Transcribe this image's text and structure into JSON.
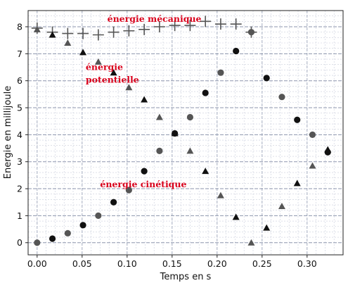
{
  "chart_data": {
    "type": "scatter",
    "title": "",
    "xlabel": "Temps en s",
    "ylabel": "Energie en millijoule",
    "xlim": [
      -0.01,
      0.34
    ],
    "ylim": [
      -0.45,
      8.6
    ],
    "x_ticks": [
      0.0,
      0.05,
      0.1,
      0.15,
      0.2,
      0.25,
      0.3
    ],
    "x_tick_labels": [
      "0.00",
      "0.05",
      "0.10",
      "0.15",
      "0.20",
      "0.25",
      "0.30"
    ],
    "y_ticks": [
      0,
      1,
      2,
      3,
      4,
      5,
      6,
      7,
      8
    ],
    "y_tick_labels": [
      "0",
      "1",
      "2",
      "3",
      "4",
      "5",
      "6",
      "7",
      "8"
    ],
    "grid": true,
    "series": [
      {
        "name": "énergie mécanique",
        "marker": "plus",
        "color": "#555555",
        "x": [
          0.0,
          0.017,
          0.034,
          0.051,
          0.068,
          0.085,
          0.102,
          0.119,
          0.136,
          0.153,
          0.17,
          0.187,
          0.204,
          0.221,
          0.238
        ],
        "y": [
          7.95,
          7.8,
          7.75,
          7.75,
          7.7,
          7.8,
          7.85,
          7.9,
          8.0,
          8.05,
          8.05,
          8.2,
          8.1,
          8.1,
          7.8
        ]
      },
      {
        "name": "énergie potentielle",
        "marker": "triangle",
        "colors_alternating": [
          "#555555",
          "#111111"
        ],
        "x": [
          0.0,
          0.017,
          0.034,
          0.051,
          0.068,
          0.085,
          0.102,
          0.119,
          0.136,
          0.153,
          0.17,
          0.187,
          0.204,
          0.221,
          0.238,
          0.255,
          0.272,
          0.289,
          0.306,
          0.323
        ],
        "y": [
          7.9,
          7.7,
          7.4,
          7.05,
          6.7,
          6.3,
          5.75,
          5.3,
          4.65,
          4.05,
          3.4,
          2.65,
          1.75,
          0.95,
          0.0,
          0.55,
          1.35,
          2.2,
          2.85,
          3.45
        ]
      },
      {
        "name": "énergie cinétique",
        "marker": "circle",
        "colors_alternating": [
          "#555555",
          "#111111"
        ],
        "x": [
          0.0,
          0.017,
          0.034,
          0.051,
          0.068,
          0.085,
          0.102,
          0.119,
          0.136,
          0.153,
          0.17,
          0.187,
          0.204,
          0.221,
          0.238,
          0.255,
          0.272,
          0.289,
          0.306,
          0.323
        ],
        "y": [
          0.0,
          0.15,
          0.35,
          0.65,
          1.0,
          1.5,
          1.95,
          2.65,
          3.4,
          4.05,
          4.65,
          5.55,
          6.3,
          7.1,
          7.8,
          6.1,
          5.4,
          4.55,
          4.0,
          3.35
        ]
      }
    ],
    "annotations": [
      {
        "text": "énergie mécanique",
        "x": 0.078,
        "y": 8.18
      },
      {
        "text": "énergie",
        "x": 0.054,
        "y": 6.4
      },
      {
        "text": "potentielle",
        "x": 0.054,
        "y": 5.93
      },
      {
        "text": "énergie cinétique",
        "x": 0.07,
        "y": 2.05
      }
    ]
  }
}
